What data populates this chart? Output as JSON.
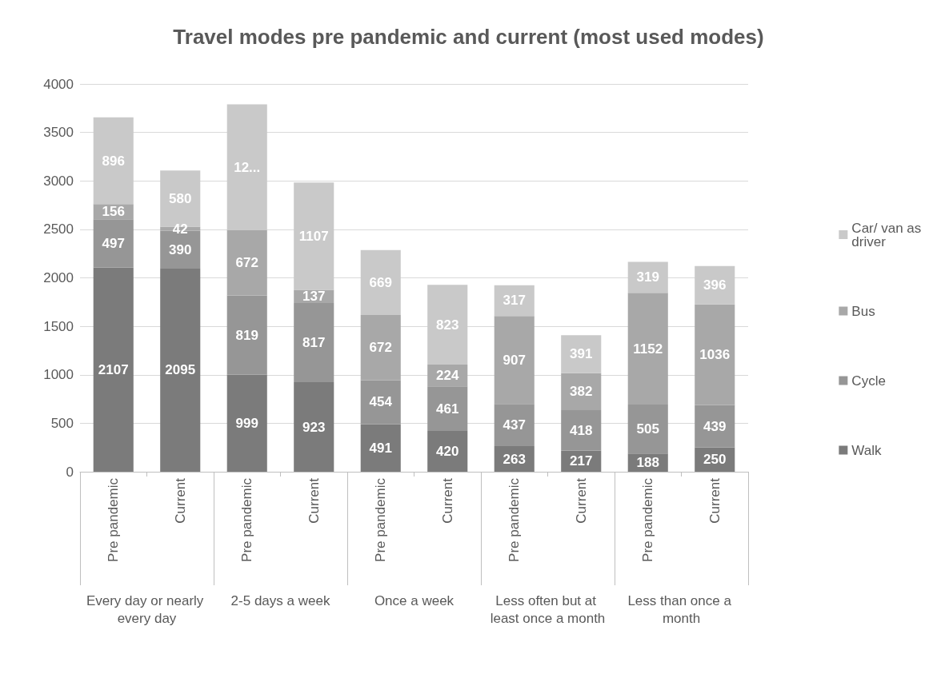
{
  "chart_data": {
    "type": "bar",
    "title": "Travel modes pre pandemic and current (most used modes)",
    "categories": [
      "Pre pandemic",
      "Current",
      "Pre pandemic",
      "Current",
      "Pre pandemic",
      "Current",
      "Pre pandemic",
      "Current",
      "Pre pandemic",
      "Current"
    ],
    "annotations": [
      "Every day or nearly every day",
      "2-5 days a week",
      "Once a week",
      "Less often but at least once a month",
      "Less than once a month"
    ],
    "stacked": true,
    "series": [
      {
        "name": "Walk",
        "color": "#7b7b7b",
        "values": [
          2107,
          2095,
          999,
          923,
          491,
          420,
          263,
          217,
          188,
          250
        ],
        "value_labels": [
          "2107",
          "2095",
          "999",
          "923",
          "491",
          "420",
          "263",
          "217",
          "188",
          "250"
        ]
      },
      {
        "name": "Cycle",
        "color": "#969696",
        "values": [
          497,
          390,
          819,
          817,
          454,
          461,
          437,
          418,
          505,
          439
        ],
        "value_labels": [
          "497",
          "390",
          "819",
          "817",
          "454",
          "461",
          "437",
          "418",
          "505",
          "439"
        ]
      },
      {
        "name": "Bus",
        "color": "#a8a8a8",
        "values": [
          156,
          42,
          672,
          137,
          672,
          224,
          907,
          382,
          1152,
          1036
        ],
        "value_labels": [
          "156",
          "42",
          "672",
          "137",
          "672",
          "224",
          "907",
          "382",
          "1152",
          "1036"
        ]
      },
      {
        "name": "Car/ van as driver",
        "color": "#c9c9c9",
        "values": [
          896,
          580,
          1300,
          1107,
          669,
          823,
          317,
          391,
          319,
          396
        ],
        "value_labels": [
          "896",
          "580",
          "12...",
          "1107",
          "669",
          "823",
          "317",
          "391",
          "319",
          "396"
        ]
      }
    ],
    "ylim": [
      0,
      4000
    ],
    "yticks": [
      0,
      500,
      1000,
      1500,
      2000,
      2500,
      3000,
      3500,
      4000
    ],
    "grid": "y",
    "legend": "right"
  }
}
